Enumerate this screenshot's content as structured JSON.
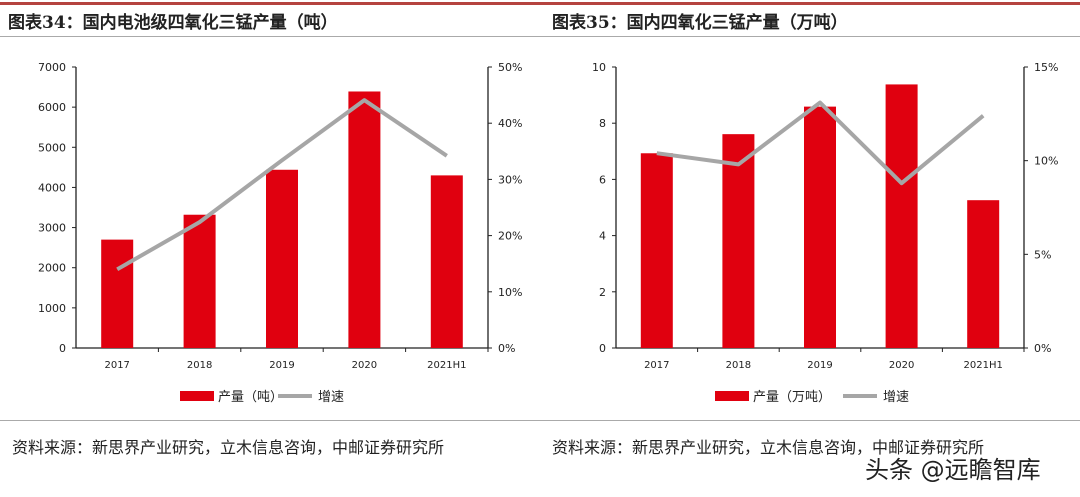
{
  "charts": [
    {
      "title": "图表34：国内电池级四氧化三锰产量（吨）",
      "source": "资料来源：新思界产业研究，立木信息咨询，中邮证券研究所"
    },
    {
      "title": "图表35：国内四氧化三锰产量（万吨）",
      "source": "资料来源：新思界产业研究，立木信息咨询，中邮证券研究所"
    }
  ],
  "watermark": "头条 @远瞻智库",
  "colors": {
    "bar": "#e0000f",
    "line": "#a6a6a6"
  },
  "chart_data": [
    {
      "type": "bar",
      "title": "图表34：国内电池级四氧化三锰产量（吨）",
      "categories": [
        "2017",
        "2018",
        "2019",
        "2020",
        "2021H1"
      ],
      "series": [
        {
          "name": "产量（吨）",
          "type": "bar",
          "axis": "left",
          "values": [
            2700,
            3320,
            4440,
            6390,
            4300
          ]
        },
        {
          "name": "增速",
          "type": "line",
          "axis": "right",
          "values": [
            14.0,
            22.4,
            33.4,
            44.1,
            34.2
          ]
        }
      ],
      "ylim": [
        0,
        7000
      ],
      "yticks": [
        "0",
        "1000",
        "2000",
        "3000",
        "4000",
        "5000",
        "6000",
        "7000"
      ],
      "y2lim": [
        0,
        50
      ],
      "y2ticks": [
        "0%",
        "10%",
        "20%",
        "30%",
        "40%",
        "50%"
      ],
      "legend": "bottom",
      "grid": false
    },
    {
      "type": "bar",
      "title": "图表35：国内四氧化三锰产量（万吨）",
      "categories": [
        "2017",
        "2018",
        "2019",
        "2020",
        "2021H1"
      ],
      "series": [
        {
          "name": "产量（万吨）",
          "type": "bar",
          "axis": "left",
          "values": [
            6.93,
            7.61,
            8.59,
            9.38,
            5.26
          ]
        },
        {
          "name": "增速",
          "type": "line",
          "axis": "right",
          "values": [
            10.4,
            9.8,
            13.1,
            8.8,
            12.4
          ]
        }
      ],
      "ylim": [
        0,
        10
      ],
      "yticks": [
        "0",
        "2",
        "4",
        "6",
        "8",
        "10"
      ],
      "y2lim": [
        0,
        15
      ],
      "y2ticks": [
        "0%",
        "5%",
        "10%",
        "15%"
      ],
      "legend": "bottom",
      "grid": false
    }
  ]
}
